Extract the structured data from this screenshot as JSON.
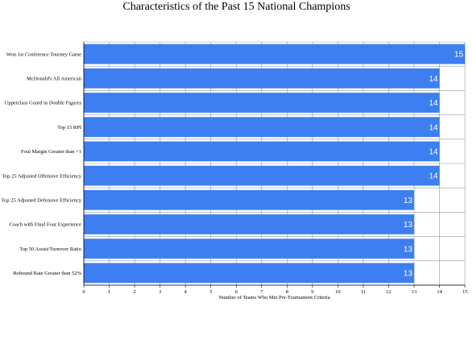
{
  "chart_data": {
    "type": "bar",
    "orientation": "horizontal",
    "title": "Characteristics of the Past 15 National Champions",
    "xlabel": "Number of Teams Who Met Pre-Tournament Criteria",
    "ylabel": "",
    "xlim": [
      0,
      15
    ],
    "xticks": [
      "0",
      "1",
      "2",
      "3",
      "4",
      "5",
      "6",
      "7",
      "8",
      "9",
      "10",
      "11",
      "12",
      "13",
      "14",
      "15"
    ],
    "grid": true,
    "bar_color": "#3d7ff0",
    "categories": [
      "Won 1st Conference Tourney Game",
      "McDonald's All American",
      "Upperclass Guard in Double Figures",
      "Top 15 RPI",
      "Foul Margin Greater than +1",
      "Top 25 Adjusted Offensive Efficiency",
      "Top 25 Adjusted Defensive Efficiency",
      "Coach with Final Four Experience",
      "Top 50 Assist/Turnover Ratio",
      "Rebound Rate Greater than 52%"
    ],
    "values": [
      15,
      14,
      14,
      14,
      14,
      14,
      13,
      13,
      13,
      13
    ],
    "value_labels": [
      "15",
      "14",
      "14",
      "14",
      "14",
      "14",
      "13",
      "13",
      "13",
      "13"
    ]
  }
}
